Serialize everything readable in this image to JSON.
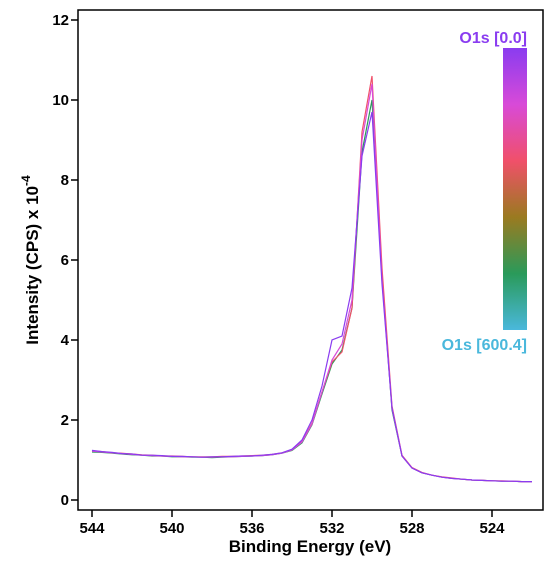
{
  "chart_data": {
    "type": "line",
    "x_label": "Binding Energy (eV)",
    "y_label": "Intensity (CPS) x 10",
    "y_label_exponent": "-4",
    "xlim": [
      544.7,
      521.45
    ],
    "ylim": [
      -0.25,
      12.25
    ],
    "xticks": [
      544,
      540,
      536,
      532,
      528,
      524
    ],
    "yticks": [
      0,
      2,
      4,
      6,
      8,
      10,
      12
    ],
    "colorbar": {
      "top_label": "O1s [0.0]",
      "bottom_label": "O1s [600.4]",
      "top_color": "#8a3cf0",
      "bottom_color": "#4ab8dc",
      "colors": [
        "#8a3cf0",
        "#d84ad8",
        "#f0506a",
        "#9a7a20",
        "#2a9a5a",
        "#4ab8dc"
      ]
    },
    "x": [
      544,
      543.5,
      543,
      542.5,
      542,
      541.5,
      541,
      540.5,
      540,
      539.5,
      539,
      538.5,
      538,
      537.5,
      537,
      536.5,
      536,
      535.5,
      535,
      534.5,
      534,
      533.5,
      533,
      532.5,
      532,
      531.5,
      531,
      530.5,
      530,
      529.5,
      529,
      528.5,
      528,
      527.5,
      527,
      526.5,
      526,
      525.5,
      525,
      524.5,
      524,
      523.5,
      523,
      522.5,
      522
    ],
    "series": [
      {
        "color": "#2a9a5a",
        "values": [
          1.2,
          1.19,
          1.17,
          1.15,
          1.13,
          1.12,
          1.1,
          1.1,
          1.08,
          1.08,
          1.07,
          1.07,
          1.06,
          1.07,
          1.08,
          1.09,
          1.1,
          1.11,
          1.13,
          1.17,
          1.24,
          1.43,
          1.88,
          2.65,
          3.4,
          3.75,
          4.8,
          8.7,
          10.0,
          5.6,
          2.25,
          1.1,
          0.8,
          0.68,
          0.62,
          0.57,
          0.54,
          0.52,
          0.5,
          0.49,
          0.48,
          0.47,
          0.47,
          0.46,
          0.46
        ]
      },
      {
        "color": "#f0506a",
        "values": [
          1.23,
          1.21,
          1.18,
          1.17,
          1.15,
          1.13,
          1.12,
          1.1,
          1.1,
          1.09,
          1.08,
          1.08,
          1.08,
          1.09,
          1.09,
          1.1,
          1.11,
          1.12,
          1.14,
          1.18,
          1.26,
          1.46,
          1.92,
          2.7,
          3.45,
          3.7,
          4.8,
          9.2,
          10.6,
          5.8,
          2.35,
          1.12,
          0.81,
          0.69,
          0.62,
          0.58,
          0.55,
          0.52,
          0.5,
          0.49,
          0.48,
          0.48,
          0.47,
          0.46,
          0.46
        ]
      },
      {
        "color": "#d84ad8",
        "values": [
          1.22,
          1.2,
          1.18,
          1.16,
          1.14,
          1.12,
          1.11,
          1.1,
          1.09,
          1.08,
          1.08,
          1.07,
          1.07,
          1.08,
          1.08,
          1.09,
          1.1,
          1.11,
          1.13,
          1.17,
          1.25,
          1.45,
          1.9,
          2.7,
          3.5,
          3.9,
          5.0,
          9.0,
          10.4,
          5.5,
          2.3,
          1.1,
          0.8,
          0.68,
          0.62,
          0.57,
          0.54,
          0.52,
          0.5,
          0.49,
          0.48,
          0.47,
          0.47,
          0.46,
          0.46
        ]
      },
      {
        "color": "#8a3cf0",
        "values": [
          1.24,
          1.21,
          1.19,
          1.16,
          1.15,
          1.12,
          1.12,
          1.11,
          1.09,
          1.09,
          1.08,
          1.07,
          1.08,
          1.08,
          1.09,
          1.1,
          1.1,
          1.12,
          1.14,
          1.18,
          1.27,
          1.5,
          2.0,
          2.85,
          4.0,
          4.1,
          5.3,
          8.6,
          9.7,
          5.4,
          2.3,
          1.1,
          0.8,
          0.68,
          0.62,
          0.57,
          0.54,
          0.52,
          0.5,
          0.49,
          0.48,
          0.47,
          0.47,
          0.46,
          0.46
        ]
      }
    ]
  }
}
